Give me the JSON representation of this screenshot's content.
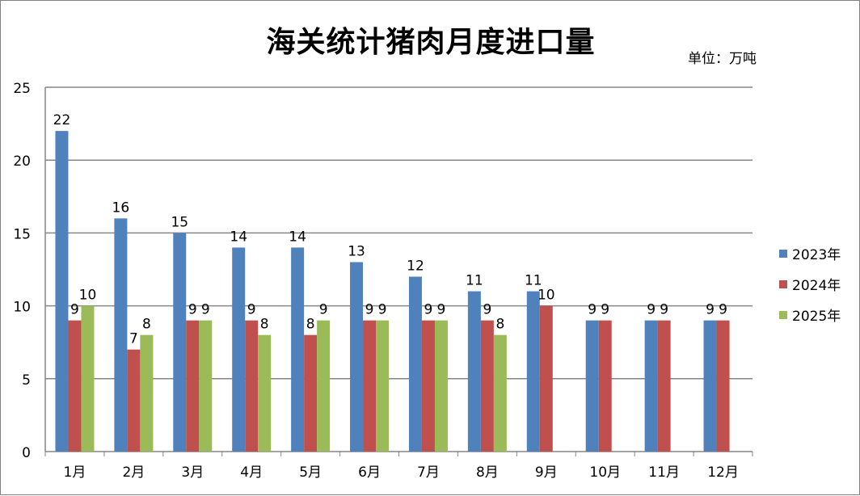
{
  "title": "海关统计猪肉月度进口量",
  "unit": "单位：万吨",
  "chart_data": {
    "type": "bar",
    "categories": [
      "1月",
      "2月",
      "3月",
      "4月",
      "5月",
      "6月",
      "7月",
      "8月",
      "9月",
      "10月",
      "11月",
      "12月"
    ],
    "ylim": [
      0,
      25
    ],
    "yticks": [
      0,
      5,
      10,
      15,
      20,
      25
    ],
    "grid": true,
    "legend_position": "right",
    "series": [
      {
        "name": "2023年",
        "color": "#4F81BD",
        "values": [
          22,
          16,
          15,
          14,
          14,
          13,
          12,
          11,
          11,
          9,
          9,
          9
        ]
      },
      {
        "name": "2024年",
        "color": "#C0504D",
        "values": [
          9,
          7,
          9,
          9,
          8,
          9,
          9,
          9,
          10,
          9,
          9,
          9
        ]
      },
      {
        "name": "2025年",
        "color": "#9BBB59",
        "values": [
          10,
          8,
          9,
          8,
          9,
          9,
          9,
          8,
          null,
          null,
          null,
          null
        ]
      }
    ]
  }
}
